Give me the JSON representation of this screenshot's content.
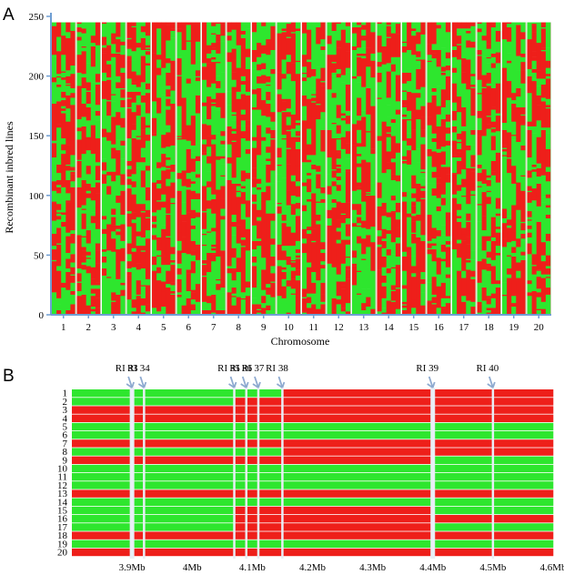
{
  "figure": {
    "panel_a_letter": "A",
    "panel_b_letter": "B"
  },
  "colors": {
    "allele_red": "#ee1f1a",
    "allele_green": "#2ee62e",
    "axis_blue": "#6f9ed3",
    "gap_white": "#e8eef6",
    "arrow": "#8eaad0"
  },
  "chart_data": [
    {
      "type": "heatmap",
      "panel": "A",
      "xlabel": "Chromosome",
      "ylabel": "Recombinant inbred lines",
      "x_tick_labels": [
        "1",
        "2",
        "3",
        "4",
        "5",
        "6",
        "7",
        "8",
        "9",
        "10",
        "11",
        "12",
        "13",
        "14",
        "15",
        "16",
        "17",
        "18",
        "19",
        "20"
      ],
      "y_tick_labels": [
        "0",
        "50",
        "100",
        "150",
        "200",
        "250"
      ],
      "ylim": [
        0,
        250
      ],
      "rows": 245,
      "legend": "none",
      "grid": false
    },
    {
      "type": "heatmap",
      "panel": "B",
      "row_labels": [
        "1",
        "2",
        "3",
        "4",
        "5",
        "6",
        "7",
        "8",
        "9",
        "10",
        "11",
        "12",
        "13",
        "14",
        "15",
        "16",
        "17",
        "18",
        "19",
        "20"
      ],
      "x_tick_labels": [
        "3.9Mb",
        "4Mb",
        "4.1Mb",
        "4.2Mb",
        "4.3Mb",
        "4.4Mb",
        "4.5Mb",
        "4.6Mb"
      ],
      "x_tick_values": [
        3.9,
        4.0,
        4.1,
        4.2,
        4.3,
        4.4,
        4.5,
        4.6
      ],
      "breakpoint_labels": [
        "RI 33",
        "RI 34",
        "RI 35",
        "RI 36",
        "RI 37",
        "RI 38",
        "RI 39",
        "RI 40"
      ],
      "breakpoints_mb": [
        3.9,
        3.92,
        4.07,
        4.09,
        4.11,
        4.15,
        4.4,
        4.5
      ],
      "segments_mb": [
        3.8,
        3.9,
        4.07,
        4.15,
        4.4,
        4.5,
        4.6
      ],
      "genotypes": [
        [
          "G",
          "G",
          "G",
          "R",
          "R",
          "R"
        ],
        [
          "G",
          "G",
          "R",
          "R",
          "R",
          "R"
        ],
        [
          "R",
          "R",
          "R",
          "R",
          "R",
          "R"
        ],
        [
          "R",
          "R",
          "R",
          "R",
          "R",
          "R"
        ],
        [
          "G",
          "G",
          "G",
          "G",
          "G",
          "G"
        ],
        [
          "G",
          "G",
          "G",
          "G",
          "G",
          "G"
        ],
        [
          "R",
          "R",
          "R",
          "R",
          "R",
          "R"
        ],
        [
          "G",
          "G",
          "G",
          "R",
          "R",
          "R"
        ],
        [
          "R",
          "R",
          "R",
          "R",
          "G",
          "G"
        ],
        [
          "G",
          "G",
          "G",
          "G",
          "G",
          "G"
        ],
        [
          "G",
          "G",
          "G",
          "G",
          "G",
          "G"
        ],
        [
          "G",
          "G",
          "G",
          "G",
          "G",
          "G"
        ],
        [
          "R",
          "R",
          "R",
          "R",
          "R",
          "R"
        ],
        [
          "G",
          "G",
          "G",
          "G",
          "G",
          "G"
        ],
        [
          "G",
          "G",
          "R",
          "R",
          "G",
          "G"
        ],
        [
          "G",
          "G",
          "R",
          "R",
          "R",
          "R"
        ],
        [
          "G",
          "G",
          "R",
          "R",
          "G",
          "G"
        ],
        [
          "R",
          "R",
          "R",
          "R",
          "R",
          "R"
        ],
        [
          "G",
          "G",
          "G",
          "G",
          "G",
          "G"
        ],
        [
          "R",
          "R",
          "R",
          "R",
          "R",
          "R"
        ]
      ]
    }
  ]
}
